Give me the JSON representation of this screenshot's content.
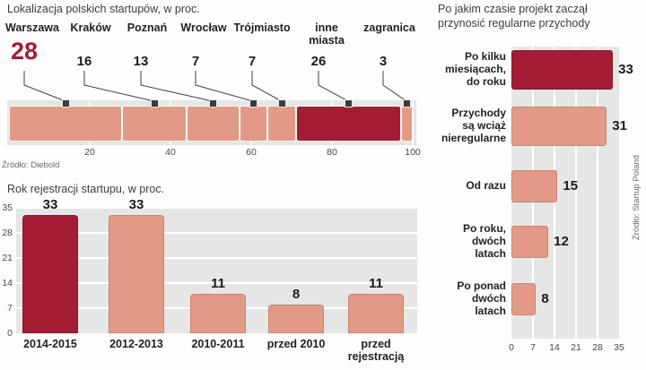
{
  "colors": {
    "highlight": "#a31c33",
    "highlight_border": "#8e1626",
    "bar": "#e29a87",
    "bar_border": "#c9836f",
    "plot_bg": "#e6e6e6",
    "grid": "#ffffff",
    "marker": "#3c3c3c",
    "text": "#222222",
    "muted": "#6b6b6b"
  },
  "chart_data": [
    {
      "id": "location",
      "type": "bar",
      "variant": "stacked-horizontal",
      "title": "Lokalizacja polskich startupów, w proc.",
      "categories": [
        "Warszawa",
        "Kraków",
        "Poznań",
        "Wrocław",
        "Trójmiasto",
        "inne\nmiasta",
        "zagranica"
      ],
      "values": [
        28,
        16,
        13,
        7,
        7,
        26,
        3
      ],
      "xlim": [
        0,
        100
      ],
      "xticks": [
        20,
        40,
        60,
        80,
        100
      ],
      "highlight_index": 5,
      "value_highlight_index": 0,
      "source": "Źródło: Diebold"
    },
    {
      "id": "registration_year",
      "type": "bar",
      "variant": "vertical",
      "title": "Rok rejestracji startupu, w proc.",
      "categories": [
        "2014-2015",
        "2012-2013",
        "2010-2011",
        "przed 2010",
        "przed rejestracją"
      ],
      "values": [
        33,
        33,
        11,
        8,
        11
      ],
      "ylim": [
        0,
        35
      ],
      "yticks": [
        0,
        7,
        14,
        21,
        28,
        35
      ],
      "highlight_index": 0
    },
    {
      "id": "revenue_timing",
      "type": "bar",
      "variant": "horizontal",
      "title": "Po jakim czasie projekt zaczął\nprzynosić regularne przychody",
      "categories": [
        "Po kilku\nmiesiącach,\ndo roku",
        "Przychody\nsą wciąż\nnieregularne",
        "Od razu",
        "Po roku,\ndwóch\nlatach",
        "Po ponad\ndwóch\nlatach"
      ],
      "values": [
        33,
        31,
        15,
        12,
        8
      ],
      "xlim": [
        0,
        35
      ],
      "xticks": [
        0,
        7,
        14,
        21,
        28,
        35
      ],
      "highlight_index": 0,
      "source": "Źródło: Startup Poland"
    }
  ]
}
